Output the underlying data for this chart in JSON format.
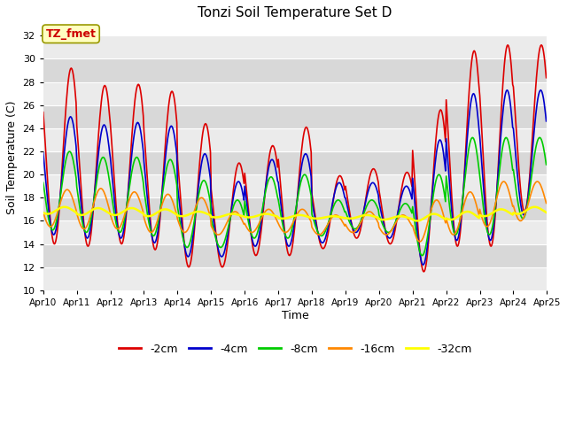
{
  "title": "Tonzi Soil Temperature Set D",
  "xlabel": "Time",
  "ylabel": "Soil Temperature (C)",
  "ylim": [
    10,
    33
  ],
  "yticks": [
    10,
    12,
    14,
    16,
    18,
    20,
    22,
    24,
    26,
    28,
    30,
    32
  ],
  "bg_light": "#ebebeb",
  "bg_dark": "#d8d8d8",
  "legend_label": "TZ_fmet",
  "series_order": [
    "-2cm",
    "-4cm",
    "-8cm",
    "-16cm",
    "-32cm"
  ],
  "series": {
    "-2cm": {
      "color": "#dd0000",
      "lw": 1.2
    },
    "-4cm": {
      "color": "#0000cc",
      "lw": 1.2
    },
    "-8cm": {
      "color": "#00cc00",
      "lw": 1.2
    },
    "-16cm": {
      "color": "#ff8800",
      "lw": 1.2
    },
    "-32cm": {
      "color": "#ffff00",
      "lw": 1.8
    }
  },
  "x_tick_labels": [
    "Apr 10",
    "Apr 11",
    "Apr 12",
    "Apr 13",
    "Apr 14",
    "Apr 15",
    "Apr 16",
    "Apr 17",
    "Apr 18",
    "Apr 19",
    "Apr 20",
    "Apr 21",
    "Apr 22",
    "Apr 23",
    "Apr 24",
    "Apr 25"
  ],
  "n_days": 15,
  "pts_per_day": 48,
  "day_peaks_2cm": [
    29.2,
    27.7,
    27.8,
    27.2,
    24.4,
    21.0,
    22.5,
    24.1,
    19.9,
    20.5,
    20.2,
    25.6,
    30.7,
    31.2,
    31.2
  ],
  "day_mins_2cm": [
    14.0,
    13.8,
    14.0,
    13.5,
    12.0,
    12.0,
    13.0,
    13.0,
    13.6,
    14.5,
    14.0,
    11.6,
    13.8,
    13.8,
    16.8
  ],
  "day_peaks_4cm": [
    25.0,
    24.3,
    24.5,
    24.2,
    21.8,
    19.4,
    21.3,
    21.8,
    19.3,
    19.3,
    19.0,
    23.0,
    27.0,
    27.3,
    27.3
  ],
  "day_mins_4cm": [
    14.8,
    14.5,
    14.5,
    14.1,
    12.9,
    12.9,
    13.8,
    13.8,
    14.1,
    15.0,
    14.5,
    12.2,
    14.3,
    14.3,
    16.5
  ],
  "day_peaks_8cm": [
    22.0,
    21.5,
    21.5,
    21.3,
    19.5,
    17.8,
    19.8,
    20.0,
    17.8,
    17.8,
    17.5,
    20.0,
    23.2,
    23.2,
    23.2
  ],
  "day_mins_8cm": [
    15.2,
    15.0,
    15.0,
    14.7,
    13.7,
    13.7,
    14.5,
    14.5,
    14.7,
    15.3,
    15.0,
    13.0,
    14.8,
    14.8,
    16.2
  ],
  "day_peaks_16cm": [
    18.7,
    18.8,
    18.5,
    18.3,
    18.0,
    16.8,
    17.0,
    17.0,
    16.5,
    16.8,
    16.5,
    17.8,
    18.5,
    19.4,
    19.4
  ],
  "day_mins_16cm": [
    15.5,
    15.3,
    15.3,
    15.0,
    15.0,
    14.8,
    15.0,
    15.0,
    14.8,
    15.0,
    14.8,
    14.2,
    14.8,
    15.5,
    16.0
  ],
  "day_peaks_32cm": [
    17.2,
    17.1,
    17.1,
    17.0,
    16.8,
    16.6,
    16.6,
    16.5,
    16.4,
    16.5,
    16.4,
    16.6,
    16.8,
    17.0,
    17.2
  ],
  "day_mins_32cm": [
    16.6,
    16.5,
    16.5,
    16.4,
    16.4,
    16.3,
    16.3,
    16.2,
    16.2,
    16.2,
    16.1,
    16.0,
    16.1,
    16.4,
    16.6
  ]
}
